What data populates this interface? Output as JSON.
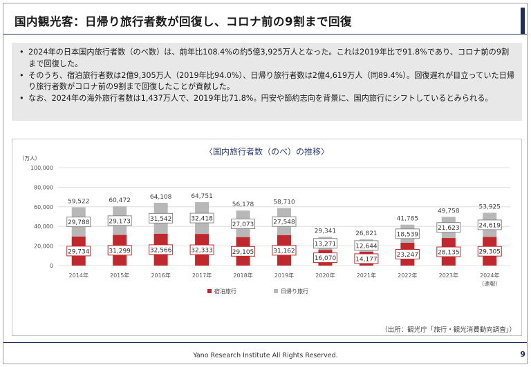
{
  "slide": {
    "title": "国内観光客：日帰り旅行者数が回復し、コロナ前の9割まで回復",
    "page_number": "9",
    "footer": "Yano Research Institute All Rights Reserved.",
    "source": "（出所：観光庁「旅行・観光消費動向調査」）"
  },
  "summary": {
    "bullets": [
      "2024年の日本国内旅行者数（のべ数）は、前年比108.4%の約5億3,925万人となった。これは2019年比で91.8%であり、コロナ前の9割まで回復した。",
      "そのうち、宿泊旅行者数は2億9,305万人（2019年比94.0%）、日帰り旅行者数は2億4,619万人（同89.4%）。回復遅れが目立っていた日帰り旅行者数がコロナ前の9割まで回復したことが貢献した。",
      "なお、2024年の海外旅行者数は1,437万人で、2019年比71.8%。円安や節約志向を背景に、国内旅行にシフトしているとみられる。"
    ]
  },
  "colors": {
    "overnight": "#c0282e",
    "daytrip": "#b8b8b8",
    "title_accent": "#1f2d5a",
    "chart_title": "#2b3f7a"
  },
  "chart_data": {
    "type": "bar",
    "stacked": true,
    "title": "〈国内旅行者数（のべ）の推移〉",
    "ylabel": "（万人）",
    "ylim": [
      0,
      100000
    ],
    "yticks": [
      0,
      20000,
      40000,
      60000,
      80000,
      100000
    ],
    "ytick_labels": [
      "0",
      "20,000",
      "40,000",
      "60,000",
      "80,000",
      "100,000"
    ],
    "grid": true,
    "legend_position": "bottom-left",
    "categories": [
      "2014年",
      "2015年",
      "2016年",
      "2017年",
      "2018年",
      "2019年",
      "2020年",
      "2021年",
      "2022年",
      "2023年",
      "2024年"
    ],
    "category_notes": [
      "",
      "",
      "",
      "",
      "",
      "",
      "",
      "",
      "",
      "",
      "（速報）"
    ],
    "series": [
      {
        "name": "宿泊旅行",
        "values": [
          29734,
          31299,
          32566,
          32333,
          29105,
          31162,
          16070,
          14177,
          23247,
          28135,
          29305
        ]
      },
      {
        "name": "日帰り旅行",
        "values": [
          29788,
          29173,
          31542,
          32418,
          27073,
          27548,
          13271,
          12644,
          18539,
          21623,
          24619
        ]
      }
    ],
    "totals": [
      59522,
      60472,
      64108,
      64751,
      56178,
      58710,
      29341,
      26821,
      41785,
      49758,
      53925
    ]
  }
}
